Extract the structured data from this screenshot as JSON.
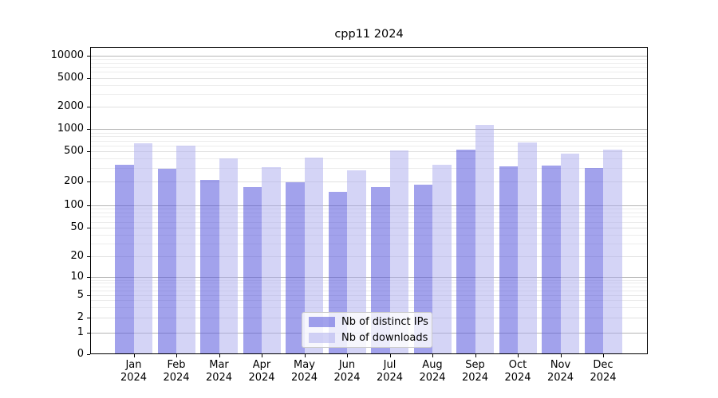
{
  "chart_data": {
    "type": "bar",
    "title": "cpp11 2024",
    "categories": [
      "Jan 2024",
      "Feb 2024",
      "Mar 2024",
      "Apr 2024",
      "May 2024",
      "Jun 2024",
      "Jul 2024",
      "Aug 2024",
      "Sep 2024",
      "Oct 2024",
      "Nov 2024",
      "Dec 2024"
    ],
    "x_tick_months": [
      "Jan",
      "Feb",
      "Mar",
      "Apr",
      "May",
      "Jun",
      "Jul",
      "Aug",
      "Sep",
      "Oct",
      "Nov",
      "Dec"
    ],
    "x_tick_year": "2024",
    "series": [
      {
        "name": "Nb of distinct IPs",
        "color": "#5555dd",
        "alpha": 0.55,
        "values": [
          330,
          290,
          210,
          168,
          196,
          149,
          168,
          180,
          525,
          313,
          320,
          300
        ]
      },
      {
        "name": "Nb of downloads",
        "color": "#aaaaee",
        "alpha": 0.5,
        "values": [
          650,
          590,
          400,
          305,
          415,
          280,
          510,
          330,
          1130,
          655,
          470,
          520
        ]
      }
    ],
    "yscale": "symlog",
    "yticks": [
      0,
      1,
      2,
      5,
      10,
      20,
      50,
      100,
      200,
      500,
      1000,
      2000,
      5000,
      10000
    ],
    "ytick_labels": [
      "0",
      "1",
      "2",
      "5",
      "10",
      "20",
      "50",
      "100",
      "200",
      "500",
      "1000",
      "2000",
      "5000",
      "10000"
    ],
    "ylim": [
      0,
      12800
    ],
    "xlabel": "",
    "ylabel": "",
    "grid": "horizontal log gridlines with minors",
    "legend_position": "lower center"
  },
  "colors": {
    "major_gridline": "#b6b6b6",
    "labeled_gridline": "#e0e0e0",
    "minor_gridline": "#ececec",
    "axis": "#000000",
    "legend_border": "#cccccc"
  }
}
